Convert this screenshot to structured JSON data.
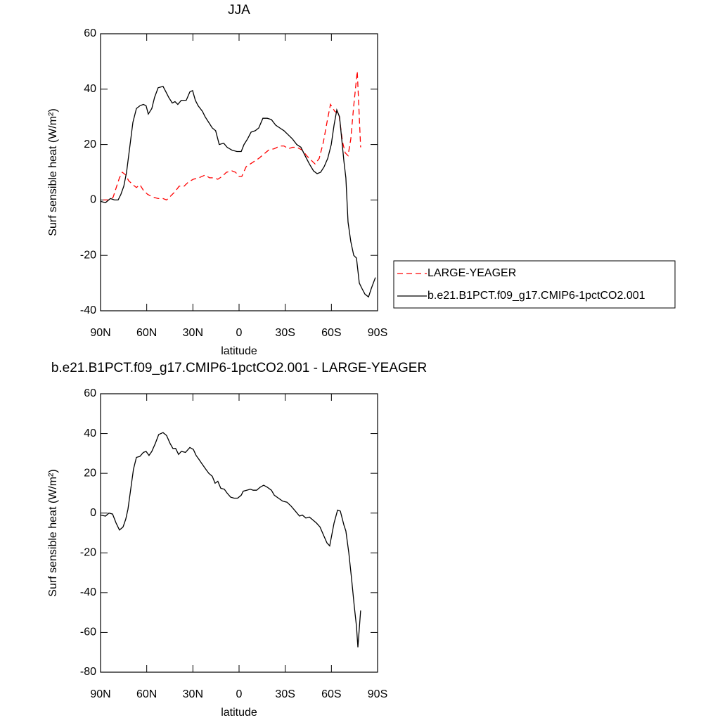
{
  "chart_data": [
    {
      "type": "line",
      "title": "JJA",
      "xlabel": "latitude",
      "ylabel": "Surf sensible heat (W/m²)",
      "xlim": [
        90,
        -90
      ],
      "xticks": [
        {
          "value": 90,
          "label": "90N"
        },
        {
          "value": 60,
          "label": "60N"
        },
        {
          "value": 30,
          "label": "30N"
        },
        0,
        {
          "value": -30,
          "label": "30S"
        },
        {
          "value": -60,
          "label": "60S"
        },
        {
          "value": -90,
          "label": "90S"
        }
      ],
      "ylim": [
        -40,
        60
      ],
      "yticks": [
        -40,
        -20,
        0,
        20,
        40,
        60
      ],
      "legend": "outside-right",
      "series": [
        {
          "name": "LARGE-YEAGER",
          "color": "#ff0000",
          "dash": "dashed",
          "x": [
            88.2,
            84.5,
            81.8,
            79.5,
            77.7,
            75.9,
            73.6,
            71.8,
            69.0,
            66.7,
            64.4,
            62.2,
            59.4,
            55.7,
            52.6,
            49.4,
            47.1,
            44.3,
            41.6,
            38.9,
            35.7,
            32.9,
            29.7,
            26.1,
            22.0,
            19.2,
            16.5,
            13.8,
            11.0,
            8.2,
            4.6,
            2.3,
            0.0,
            -1.8,
            -4.6,
            -7.3,
            -10.1,
            -12.8,
            -16.0,
            -19.2,
            -22.9,
            -26.5,
            -29.2,
            -32.0,
            -34.7,
            -37.5,
            -41.1,
            -43.9,
            -46.6,
            -49.4,
            -52.1,
            -54.8,
            -57.1,
            -59.4,
            -62.2,
            -64.9,
            -67.2,
            -69.0,
            -70.8,
            -72.6,
            -74.5,
            -76.8,
            -79.0
          ],
          "values": [
            0,
            0,
            1,
            5,
            8,
            10,
            9,
            7,
            5.5,
            4.5,
            5.5,
            3.5,
            2,
            1,
            0.5,
            0.5,
            0,
            1.5,
            3,
            5,
            5,
            6.5,
            7.5,
            8,
            9,
            8,
            8,
            7.5,
            8.5,
            10,
            10.5,
            10,
            8.5,
            8.5,
            12,
            13,
            14,
            15,
            16.5,
            18,
            18.5,
            19.5,
            19.5,
            18.5,
            19,
            19,
            18,
            16,
            14.5,
            13,
            15,
            21,
            28,
            34.5,
            32,
            31,
            21,
            17,
            16,
            22,
            34,
            46.5,
            19
          ]
        },
        {
          "name": "b.e21.B1PCT.f09_g17.CMIP6-1pctCO2.001",
          "color": "#000000",
          "dash": "solid",
          "x": [
            90,
            86.8,
            83.6,
            80.9,
            78.6,
            76.8,
            74.9,
            73.1,
            70.8,
            69.0,
            66.7,
            64.4,
            62.2,
            60.4,
            59.0,
            56.7,
            54.9,
            52.6,
            49.4,
            47.5,
            45.7,
            43.4,
            41.6,
            39.8,
            37.5,
            34.3,
            32.0,
            30.2,
            28.4,
            26.6,
            23.8,
            22.0,
            19.7,
            17.4,
            15.2,
            12.9,
            10.0,
            7.7,
            4.6,
            1.4,
            -1.4,
            -3.2,
            -5.5,
            -7.8,
            -10.5,
            -12.8,
            -15.5,
            -18.3,
            -21.0,
            -23.8,
            -26.5,
            -29.2,
            -32.0,
            -34.7,
            -37.5,
            -40.2,
            -42.9,
            -45.7,
            -48.4,
            -50.7,
            -53.0,
            -55.3,
            -57.6,
            -59.9,
            -61.7,
            -63.5,
            -65.3,
            -66.7,
            -68.1,
            -69.4,
            -70.8,
            -72.6,
            -74.5,
            -76.3,
            -78.1,
            -79.9,
            -81.8,
            -84.1,
            -85.9,
            -88.6
          ],
          "values": [
            -0.5,
            -1,
            0.5,
            0,
            0,
            2,
            5,
            10,
            20,
            28,
            33,
            34,
            34.5,
            34,
            31,
            33,
            37,
            40.5,
            41,
            39,
            37,
            35,
            35.5,
            34.5,
            36,
            36,
            39,
            39.5,
            36,
            34,
            32,
            30,
            28,
            26,
            25,
            20,
            20.5,
            19,
            18,
            17.5,
            17.5,
            20,
            22,
            24.5,
            25,
            26,
            29.5,
            29.5,
            29,
            27,
            26,
            25,
            23.5,
            22,
            20,
            19,
            16,
            13,
            10.5,
            9.5,
            10,
            12,
            15,
            20,
            27,
            32.5,
            30,
            22,
            14,
            8,
            -8,
            -15,
            -20,
            -21,
            -30,
            -32,
            -34,
            -35,
            -32,
            -28
          ]
        }
      ]
    },
    {
      "type": "line",
      "title": "b.e21.B1PCT.f09_g17.CMIP6-1pctCO2.001 - LARGE-YEAGER",
      "xlabel": "latitude",
      "ylabel": "Surf sensible heat (W/m²)",
      "xlim": [
        90,
        -90
      ],
      "xticks": [
        {
          "value": 90,
          "label": "90N"
        },
        {
          "value": 60,
          "label": "60N"
        },
        {
          "value": 30,
          "label": "30N"
        },
        0,
        {
          "value": -30,
          "label": "30S"
        },
        {
          "value": -60,
          "label": "60S"
        },
        {
          "value": -90,
          "label": "90S"
        }
      ],
      "ylim": [
        -80,
        60
      ],
      "yticks": [
        -80,
        -60,
        -40,
        -20,
        0,
        20,
        40,
        60
      ],
      "series": [
        {
          "color": "#000000",
          "dash": "solid",
          "x": [
            90,
            86.8,
            84.5,
            82.2,
            79.9,
            77.7,
            75.4,
            73.6,
            72.2,
            70.4,
            68.6,
            66.7,
            64.4,
            62.2,
            60.4,
            58.5,
            56.7,
            54.4,
            52.2,
            49.4,
            47.1,
            44.8,
            43.0,
            41.2,
            39.3,
            37.5,
            34.8,
            32.0,
            29.7,
            27.9,
            26.1,
            24.3,
            22.0,
            19.7,
            17.4,
            15.6,
            13.8,
            11.9,
            9.6,
            7.7,
            5.5,
            3.2,
            0.9,
            -1.4,
            -2.7,
            -5.0,
            -7.3,
            -9.2,
            -11.4,
            -13.7,
            -16.0,
            -18.3,
            -21.0,
            -22.9,
            -25.6,
            -28.3,
            -31.1,
            -33.8,
            -36.6,
            -39.3,
            -41.1,
            -43.4,
            -45.7,
            -48.0,
            -50.3,
            -52.6,
            -54.8,
            -57.1,
            -58.9,
            -61.7,
            -64.0,
            -65.8,
            -68.1,
            -69.4,
            -71.3,
            -73.1,
            -74.9,
            -76.3,
            -77.2,
            -79.0
          ],
          "values": [
            -1,
            -1.5,
            0,
            -0.5,
            -5,
            -8.5,
            -7,
            -3,
            2,
            12,
            22,
            28,
            28.5,
            30.5,
            31,
            29,
            31,
            35,
            39.5,
            40.5,
            39,
            35,
            32.5,
            32.5,
            29.5,
            31,
            30.5,
            33,
            32,
            29,
            27,
            25,
            22.5,
            20,
            18.5,
            15,
            16,
            12.5,
            12,
            10,
            8,
            7.5,
            7.5,
            9,
            11,
            11.5,
            12,
            11.5,
            11.5,
            13,
            14,
            13,
            11.5,
            9,
            7.5,
            6,
            5.5,
            3.5,
            1,
            -1.5,
            -1,
            -2.5,
            -2,
            -3.5,
            -5,
            -7,
            -11,
            -15,
            -16.5,
            -5,
            1.5,
            1,
            -6,
            -9,
            -20,
            -33,
            -47,
            -57,
            -67.5,
            -49
          ]
        }
      ]
    }
  ]
}
